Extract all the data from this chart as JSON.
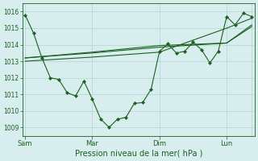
{
  "bg_color": "#d8eeee",
  "grid_color": "#b8d8d8",
  "line_color": "#1a6020",
  "title": "Pression niveau de la mer( hPa )",
  "ylim": [
    1008.5,
    1016.5
  ],
  "yticks": [
    1009,
    1010,
    1011,
    1012,
    1013,
    1014,
    1015,
    1016
  ],
  "xmin": -2,
  "xmax": 164,
  "day_lines": [
    0,
    48,
    96,
    144
  ],
  "xtick_labels": [
    "Sam",
    "Mar",
    "Dim",
    "Lun"
  ],
  "series1": {
    "x": [
      0,
      6,
      12,
      18,
      24,
      30,
      36,
      42,
      48,
      54,
      60,
      66,
      72,
      78,
      84,
      90,
      96,
      102,
      108,
      114,
      120,
      126,
      132,
      138,
      144,
      150,
      156,
      162
    ],
    "y": [
      1015.8,
      1014.7,
      1013.2,
      1012.0,
      1011.9,
      1011.1,
      1010.9,
      1011.8,
      1010.7,
      1009.5,
      1009.0,
      1009.5,
      1009.6,
      1010.45,
      1010.5,
      1011.3,
      1013.6,
      1014.05,
      1013.5,
      1013.6,
      1014.15,
      1013.7,
      1012.9,
      1013.6,
      1015.7,
      1015.2,
      1015.9,
      1015.7
    ]
  },
  "series2": {
    "x": [
      0,
      48,
      96,
      144,
      162
    ],
    "y": [
      1013.2,
      1013.5,
      1013.85,
      1014.1,
      1015.2
    ]
  },
  "series3": {
    "x": [
      0,
      48,
      96,
      144,
      162
    ],
    "y": [
      1013.2,
      1013.55,
      1013.95,
      1014.1,
      1015.1
    ]
  },
  "series4": {
    "x": [
      0,
      48,
      96,
      144,
      162
    ],
    "y": [
      1013.0,
      1013.25,
      1013.55,
      1015.0,
      1015.6
    ]
  }
}
